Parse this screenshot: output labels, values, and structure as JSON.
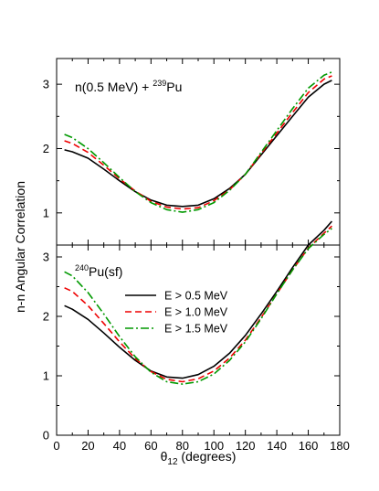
{
  "chart_data": {
    "type": "line",
    "xlabel": {
      "base": "θ",
      "sub": "12",
      "rest": " (degrees)"
    },
    "ylabel": "n-n Angular Correlation",
    "xlim": [
      0,
      180
    ],
    "xticks": [
      0,
      20,
      40,
      60,
      80,
      100,
      120,
      140,
      160,
      180
    ],
    "legend": {
      "placement": "center-left of lower panel",
      "entries": [
        "E > 0.5 MeV",
        "E > 1.0 MeV",
        "E > 1.5 MeV"
      ]
    },
    "series_styles": [
      {
        "color": "#000000",
        "dash": ""
      },
      {
        "color": "#ee0000",
        "dash": "7,4"
      },
      {
        "color": "#009900",
        "dash": "9,3,2,3"
      }
    ],
    "panels": [
      {
        "annotation": {
          "pre": "n(0.5 MeV) + ",
          "sup": "239",
          "post": "Pu"
        },
        "ylim": [
          0.5,
          3.4
        ],
        "yticks": [
          1,
          2,
          3
        ],
        "x": [
          5,
          10,
          20,
          30,
          40,
          50,
          60,
          70,
          80,
          90,
          100,
          110,
          120,
          130,
          140,
          150,
          160,
          170,
          175
        ],
        "series": [
          {
            "values": [
              1.98,
              1.95,
              1.85,
              1.68,
              1.5,
              1.33,
              1.2,
              1.12,
              1.1,
              1.12,
              1.22,
              1.38,
              1.6,
              1.9,
              2.2,
              2.5,
              2.8,
              3.0,
              3.06
            ]
          },
          {
            "values": [
              2.12,
              2.08,
              1.94,
              1.74,
              1.53,
              1.34,
              1.18,
              1.09,
              1.06,
              1.08,
              1.19,
              1.36,
              1.6,
              1.92,
              2.24,
              2.56,
              2.87,
              3.08,
              3.13
            ]
          },
          {
            "values": [
              2.22,
              2.17,
              2.0,
              1.78,
              1.55,
              1.33,
              1.16,
              1.05,
              1.01,
              1.05,
              1.16,
              1.35,
              1.6,
              1.94,
              2.28,
              2.62,
              2.94,
              3.14,
              3.19
            ]
          }
        ]
      },
      {
        "annotation": {
          "pre": "",
          "sup": "240",
          "post": "Pu(sf)"
        },
        "ylim": [
          0,
          3.2
        ],
        "yticks": [
          0,
          1,
          2,
          3
        ],
        "x": [
          5,
          10,
          20,
          30,
          40,
          50,
          60,
          70,
          80,
          90,
          100,
          110,
          120,
          130,
          140,
          150,
          160,
          170,
          175
        ],
        "series": [
          {
            "values": [
              2.18,
              2.12,
              1.95,
              1.72,
              1.48,
              1.26,
              1.08,
              0.98,
              0.96,
              1.02,
              1.16,
              1.38,
              1.68,
              2.04,
              2.42,
              2.82,
              3.2,
              3.45,
              3.6
            ]
          },
          {
            "values": [
              2.48,
              2.42,
              2.18,
              1.88,
              1.57,
              1.29,
              1.07,
              0.94,
              0.9,
              0.95,
              1.08,
              1.3,
              1.6,
              1.98,
              2.38,
              2.78,
              3.15,
              3.4,
              3.52
            ]
          },
          {
            "values": [
              2.75,
              2.68,
              2.4,
              2.04,
              1.66,
              1.32,
              1.06,
              0.9,
              0.86,
              0.9,
              1.03,
              1.26,
              1.57,
              1.96,
              2.38,
              2.78,
              3.14,
              3.38,
              3.48
            ]
          }
        ]
      }
    ]
  }
}
